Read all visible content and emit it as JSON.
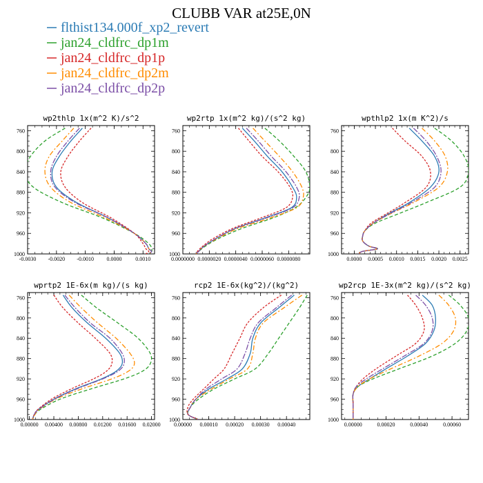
{
  "title": "CLUBB VAR at25E,0N",
  "legend": [
    {
      "name": "flthist134.000f_xp2_revert",
      "color": "#2b7bb4"
    },
    {
      "name": "jan24_cldfrc_dp1m",
      "color": "#2ca02c"
    },
    {
      "name": "jan24_cldfrc_dp1p",
      "color": "#d62728"
    },
    {
      "name": "jan24_cldfrc_dp2m",
      "color": "#ff8c00"
    },
    {
      "name": "jan24_cldfrc_dp2p",
      "color": "#7b4ea6"
    }
  ],
  "chart_data": [
    {
      "type": "line",
      "title": "wp2thlp  1x(m^2 K)/s^2",
      "xlim": [
        -0.003,
        0.0014
      ],
      "ylim": [
        1000,
        750
      ],
      "xticks": [
        -0.003,
        -0.002,
        -0.001,
        0.0,
        0.001
      ],
      "xticklabels": [
        "-0.0030",
        "-0.0020",
        "-0.0010",
        "0.0000",
        "0.0010"
      ],
      "yticks": [
        760,
        800,
        840,
        880,
        920,
        960,
        1000
      ],
      "yticklabels": [
        "760",
        "800",
        "840",
        "880",
        "920",
        "960",
        "1000"
      ],
      "y": [
        755,
        780,
        810,
        840,
        870,
        900,
        930,
        960,
        980,
        990,
        995,
        1000
      ],
      "series": [
        {
          "name": "flthist134.000f_xp2_revert",
          "values": [
            -0.0011,
            -0.0015,
            -0.0019,
            -0.00215,
            -0.002,
            -0.0013,
            -0.0002,
            0.0007,
            0.0011,
            0.0012,
            0.0013,
            0.0012
          ]
        },
        {
          "name": "jan24_cldfrc_dp1m",
          "values": [
            -0.0017,
            -0.0024,
            -0.0029,
            -0.0031,
            -0.0028,
            -0.0018,
            -0.0004,
            0.0007,
            0.0012,
            0.0013,
            0.0013,
            0.0012
          ]
        },
        {
          "name": "jan24_cldfrc_dp1p",
          "values": [
            -0.0008,
            -0.0012,
            -0.0016,
            -0.00185,
            -0.0017,
            -0.0011,
            -0.0001,
            0.0007,
            0.001,
            0.0011,
            0.0012,
            0.0011
          ]
        },
        {
          "name": "jan24_cldfrc_dp2m",
          "values": [
            -0.0014,
            -0.0018,
            -0.00225,
            -0.0024,
            -0.0022,
            -0.0015,
            -0.0003,
            0.0007,
            0.0011,
            0.0012,
            0.0013,
            0.0012
          ]
        },
        {
          "name": "jan24_cldfrc_dp2p",
          "values": [
            -0.0012,
            -0.0016,
            -0.002,
            -0.0022,
            -0.00205,
            -0.00135,
            -0.0002,
            0.0007,
            0.0011,
            0.0012,
            0.0013,
            0.0012
          ]
        }
      ]
    },
    {
      "type": "line",
      "title": "wp2rtp  1x(m^2 kg)/(s^2 kg)",
      "xlim": [
        0.0,
        9.6e-06
      ],
      "ylim": [
        1000,
        750
      ],
      "xticks": [
        0.0,
        2e-06,
        4e-06,
        6e-06,
        8e-06
      ],
      "xticklabels": [
        "0.0000000",
        "0.0000020",
        "0.0000040",
        "0.0000060",
        "0.0000080"
      ],
      "yticks": [
        760,
        800,
        840,
        880,
        920,
        960,
        1000
      ],
      "yticklabels": [
        "760",
        "800",
        "840",
        "880",
        "920",
        "960",
        "1000"
      ],
      "y": [
        755,
        780,
        810,
        840,
        870,
        890,
        910,
        930,
        950,
        970,
        985,
        995,
        1000
      ],
      "series": [
        {
          "name": "flthist134.000f_xp2_revert",
          "values": [
            4.5e-06,
            5.4e-06,
            6.4e-06,
            7.5e-06,
            8.3e-06,
            8.6e-06,
            8.2e-06,
            6.2e-06,
            4e-06,
            2.5e-06,
            1.6e-06,
            1.2e-06,
            1e-06
          ]
        },
        {
          "name": "jan24_cldfrc_dp1m",
          "values": [
            6.2e-06,
            7.3e-06,
            8.4e-06,
            9.3e-06,
            9.6e-06,
            9.3e-06,
            8.5e-06,
            6.8e-06,
            4.5e-06,
            2.7e-06,
            1.7e-06,
            1.2e-06,
            1e-06
          ]
        },
        {
          "name": "jan24_cldfrc_dp1p",
          "values": [
            4.2e-06,
            5e-06,
            6e-06,
            7.2e-06,
            8.1e-06,
            8.3e-06,
            7.8e-06,
            5.9e-06,
            3.8e-06,
            2.3e-06,
            1.5e-06,
            1.1e-06,
            1e-06
          ]
        },
        {
          "name": "jan24_cldfrc_dp2m",
          "values": [
            5.3e-06,
            6.2e-06,
            7.3e-06,
            8.3e-06,
            9e-06,
            9.1e-06,
            8.6e-06,
            6.6e-06,
            4.2e-06,
            2.6e-06,
            1.6e-06,
            1.2e-06,
            1e-06
          ]
        },
        {
          "name": "jan24_cldfrc_dp2p",
          "values": [
            4.8e-06,
            5.7e-06,
            6.7e-06,
            7.8e-06,
            8.6e-06,
            8.8e-06,
            8.3e-06,
            6.3e-06,
            4e-06,
            2.5e-06,
            1.6e-06,
            1.2e-06,
            1e-06
          ]
        }
      ]
    },
    {
      "type": "line",
      "title": "wpthlp2  1x(m K^2)/s",
      "xlim": [
        -0.0003,
        0.0027
      ],
      "ylim": [
        1000,
        750
      ],
      "xticks": [
        0.0,
        0.0005,
        0.001,
        0.0015,
        0.002,
        0.0025
      ],
      "xticklabels": [
        "0.0000",
        "0.0005",
        "0.0010",
        "0.0015",
        "0.0020",
        "0.0025"
      ],
      "yticks": [
        760,
        800,
        840,
        880,
        920,
        960,
        1000
      ],
      "yticklabels": [
        "760",
        "800",
        "840",
        "880",
        "920",
        "960",
        "1000"
      ],
      "y": [
        755,
        780,
        810,
        840,
        870,
        900,
        920,
        940,
        955,
        965,
        975,
        985,
        990,
        995,
        1000
      ],
      "series": [
        {
          "name": "flthist134.000f_xp2_revert",
          "values": [
            0.0013,
            0.0016,
            0.0019,
            0.002,
            0.0018,
            0.0013,
            0.00085,
            0.00045,
            0.00025,
            0.0002,
            0.0002,
            0.00035,
            0.00055,
            0.0002,
            0.0001
          ]
        },
        {
          "name": "jan24_cldfrc_dp1m",
          "values": [
            0.0019,
            0.0023,
            0.0026,
            0.0027,
            0.0025,
            0.0017,
            0.0011,
            0.0005,
            0.00025,
            0.0002,
            0.0002,
            0.00035,
            0.00055,
            0.0002,
            0.0001
          ]
        },
        {
          "name": "jan24_cldfrc_dp1p",
          "values": [
            0.0009,
            0.0012,
            0.0016,
            0.0018,
            0.0017,
            0.0012,
            0.0008,
            0.0004,
            0.00025,
            0.0002,
            0.0002,
            0.00035,
            0.00055,
            0.0002,
            0.0001
          ]
        },
        {
          "name": "jan24_cldfrc_dp2m",
          "values": [
            0.0016,
            0.0019,
            0.00215,
            0.0022,
            0.002,
            0.0014,
            0.0009,
            0.00045,
            0.00025,
            0.0002,
            0.0002,
            0.00035,
            0.00055,
            0.0002,
            0.0001
          ]
        },
        {
          "name": "jan24_cldfrc_dp2p",
          "values": [
            0.0014,
            0.0017,
            0.00195,
            0.00205,
            0.0019,
            0.00135,
            0.00088,
            0.00045,
            0.00025,
            0.0002,
            0.0002,
            0.00035,
            0.00055,
            0.0002,
            0.0001
          ]
        }
      ]
    },
    {
      "type": "line",
      "title": "wprtp2  1E-6x(m kg)/(s kg)",
      "xlim": [
        -0.0003,
        0.0205
      ],
      "ylim": [
        1000,
        750
      ],
      "xticks": [
        0.0,
        0.004,
        0.008,
        0.012,
        0.016,
        0.02
      ],
      "xticklabels": [
        "0.00000",
        "0.00400",
        "0.00800",
        "0.01200",
        "0.01600",
        "0.02000"
      ],
      "yticks": [
        760,
        800,
        840,
        880,
        920,
        960,
        1000
      ],
      "yticklabels": [
        "760",
        "800",
        "840",
        "880",
        "920",
        "960",
        "1000"
      ],
      "y": [
        755,
        780,
        810,
        840,
        870,
        890,
        905,
        920,
        940,
        960,
        980,
        990,
        1000
      ],
      "series": [
        {
          "name": "flthist134.000f_xp2_revert",
          "values": [
            0.0055,
            0.007,
            0.0095,
            0.0125,
            0.0148,
            0.0152,
            0.0142,
            0.0118,
            0.0075,
            0.004,
            0.0015,
            0.0008,
            0.0005
          ]
        },
        {
          "name": "jan24_cldfrc_dp1m",
          "values": [
            0.0085,
            0.011,
            0.0145,
            0.0178,
            0.0198,
            0.0198,
            0.0185,
            0.0155,
            0.01,
            0.005,
            0.0018,
            0.0009,
            0.0005
          ]
        },
        {
          "name": "jan24_cldfrc_dp1p",
          "values": [
            0.004,
            0.0055,
            0.008,
            0.0108,
            0.0132,
            0.0135,
            0.0126,
            0.0105,
            0.0068,
            0.0036,
            0.0014,
            0.0008,
            0.0005
          ]
        },
        {
          "name": "jan24_cldfrc_dp2m",
          "values": [
            0.0065,
            0.0085,
            0.0112,
            0.0142,
            0.0165,
            0.0172,
            0.0162,
            0.0135,
            0.0085,
            0.0043,
            0.0016,
            0.0009,
            0.0005
          ]
        },
        {
          "name": "jan24_cldfrc_dp2p",
          "values": [
            0.0058,
            0.0075,
            0.01,
            0.0132,
            0.0152,
            0.0155,
            0.0145,
            0.012,
            0.0077,
            0.0041,
            0.0015,
            0.0008,
            0.0005
          ]
        }
      ]
    },
    {
      "type": "line",
      "title": "rcp2  1E-6x(kg^2)/(kg^2)",
      "xlim": [
        0.0,
        0.00049
      ],
      "ylim": [
        1000,
        750
      ],
      "xticks": [
        0.0,
        0.0001,
        0.0002,
        0.0003,
        0.0004
      ],
      "xticklabels": [
        "0.00000",
        "0.00010",
        "0.00020",
        "0.00030",
        "0.00040"
      ],
      "yticks": [
        760,
        800,
        840,
        880,
        920,
        960,
        1000
      ],
      "yticklabels": [
        "760",
        "800",
        "840",
        "880",
        "920",
        "960",
        "1000"
      ],
      "y": [
        755,
        780,
        810,
        840,
        870,
        900,
        920,
        940,
        960,
        975,
        990,
        1000
      ],
      "series": [
        {
          "name": "flthist134.000f_xp2_revert",
          "values": [
            0.00043,
            0.00037,
            0.0003,
            0.00027,
            0.00026,
            0.00023,
            0.00017,
            0.0001,
            5e-05,
            3e-05,
            2e-05,
            6e-05
          ]
        },
        {
          "name": "jan24_cldfrc_dp1m",
          "values": [
            0.00048,
            0.00045,
            0.00041,
            0.00037,
            0.00033,
            0.00028,
            0.0002,
            0.00012,
            6e-05,
            3e-05,
            2e-05,
            6e-05
          ]
        },
        {
          "name": "jan24_cldfrc_dp1p",
          "values": [
            0.00038,
            0.00031,
            0.00025,
            0.00022,
            0.00019,
            0.00016,
            0.00012,
            8e-05,
            4e-05,
            2e-05,
            2e-05,
            6e-05
          ]
        },
        {
          "name": "jan24_cldfrc_dp2m",
          "values": [
            0.00046,
            0.00039,
            0.00031,
            0.00028,
            0.00027,
            0.00025,
            0.00018,
            0.00011,
            5e-05,
            3e-05,
            2e-05,
            6e-05
          ]
        },
        {
          "name": "jan24_cldfrc_dp2p",
          "values": [
            0.00042,
            0.00036,
            0.00029,
            0.00026,
            0.00024,
            0.00021,
            0.00015,
            9e-05,
            5e-05,
            3e-05,
            2e-05,
            6e-05
          ]
        }
      ]
    },
    {
      "type": "line",
      "title": "wp2rcp  1E-3x(m^2 kg)/(s^2 kg)",
      "xlim": [
        -7e-05,
        0.0007
      ],
      "ylim": [
        1000,
        750
      ],
      "xticks": [
        0.0,
        0.0002,
        0.0004,
        0.0006
      ],
      "xticklabels": [
        "0.00000",
        "0.00020",
        "0.00040",
        "0.00060"
      ],
      "yticks": [
        760,
        800,
        840,
        880,
        920,
        960,
        1000
      ],
      "yticklabels": [
        "760",
        "800",
        "840",
        "880",
        "920",
        "960",
        "1000"
      ],
      "y": [
        755,
        775,
        800,
        825,
        850,
        875,
        900,
        920,
        935,
        950,
        970,
        1000
      ],
      "series": [
        {
          "name": "flthist134.000f_xp2_revert",
          "values": [
            0.00042,
            0.00048,
            0.0005,
            0.00049,
            0.00044,
            0.00033,
            0.0002,
            0.0001,
            3e-05,
            0.0,
            0.0,
            0.0
          ]
        },
        {
          "name": "jan24_cldfrc_dp1m",
          "values": [
            0.00058,
            0.00065,
            0.0007,
            0.00069,
            0.00062,
            0.00048,
            0.00028,
            0.00012,
            3e-05,
            0.0,
            0.0,
            0.0
          ]
        },
        {
          "name": "jan24_cldfrc_dp1p",
          "values": [
            0.00033,
            0.00038,
            0.00042,
            0.00043,
            0.00038,
            0.00026,
            0.00014,
            6e-05,
            2e-05,
            0.0,
            0.0,
            0.0
          ]
        },
        {
          "name": "jan24_cldfrc_dp2m",
          "values": [
            0.00052,
            0.00058,
            0.00062,
            0.00061,
            0.00054,
            0.0004,
            0.00023,
            0.0001,
            3e-05,
            0.0,
            0.0,
            0.0
          ]
        },
        {
          "name": "jan24_cldfrc_dp2p",
          "values": [
            0.00038,
            0.00044,
            0.00048,
            0.00048,
            0.00043,
            0.00031,
            0.00018,
            8e-05,
            2e-05,
            0.0,
            0.0,
            0.0
          ]
        }
      ]
    }
  ]
}
